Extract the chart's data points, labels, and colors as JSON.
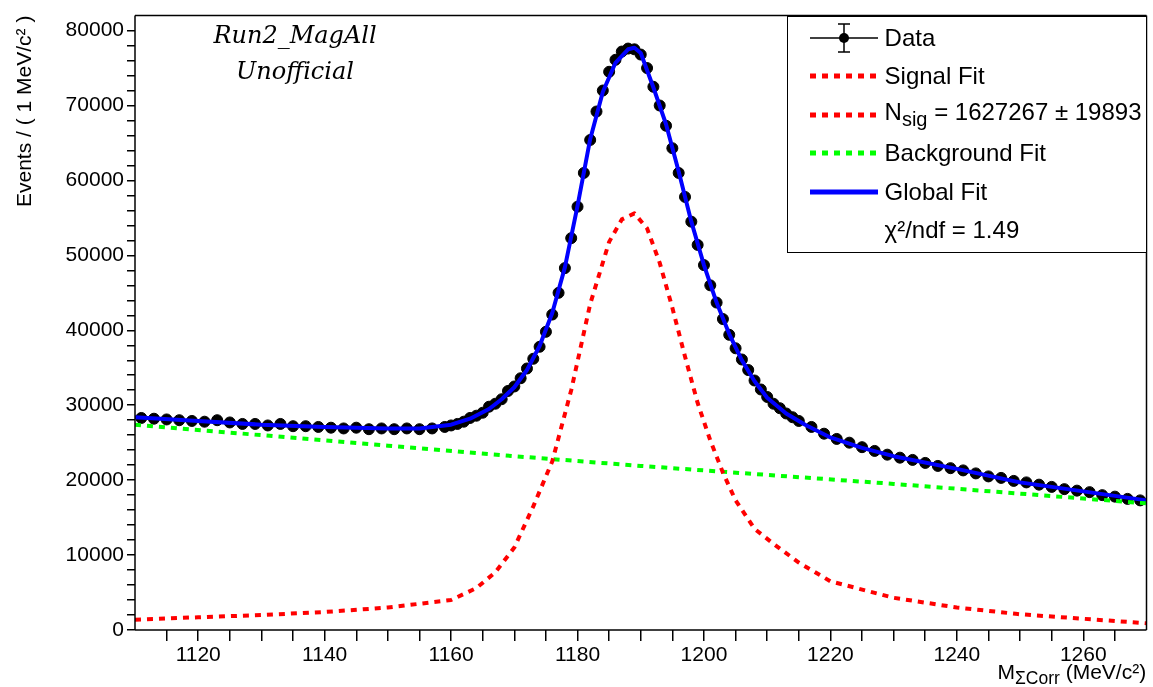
{
  "chart_data": {
    "type": "line",
    "xlabel": "M$_{ΣCorr}$ (MeV/c²)",
    "ylabel": "Events / ( 1 MeV/c² )",
    "xlim": [
      1110,
      1270
    ],
    "xticks": [
      {
        "value": 1115,
        "label": null
      },
      1120,
      {
        "value": 1125,
        "label": null
      },
      {
        "value": 1130,
        "label": null
      },
      {
        "value": 1135,
        "label": null
      },
      1140,
      {
        "value": 1145,
        "label": null
      },
      {
        "value": 1150,
        "label": null
      },
      {
        "value": 1155,
        "label": null
      },
      1160,
      {
        "value": 1165,
        "label": null
      },
      {
        "value": 1170,
        "label": null
      },
      {
        "value": 1175,
        "label": null
      },
      1180,
      {
        "value": 1185,
        "label": null
      },
      {
        "value": 1190,
        "label": null
      },
      {
        "value": 1195,
        "label": null
      },
      1200,
      {
        "value": 1205,
        "label": null
      },
      {
        "value": 1210,
        "label": null
      },
      {
        "value": 1215,
        "label": null
      },
      1220,
      {
        "value": 1225,
        "label": null
      },
      {
        "value": 1230,
        "label": null
      },
      {
        "value": 1235,
        "label": null
      },
      1240,
      {
        "value": 1245,
        "label": null
      },
      {
        "value": 1250,
        "label": null
      },
      {
        "value": 1255,
        "label": null
      },
      1260,
      {
        "value": 1265,
        "label": null
      }
    ],
    "ylim": [
      0,
      82000
    ],
    "yticks": [
      0,
      {
        "value": 2000,
        "label": null
      },
      {
        "value": 4000,
        "label": null
      },
      {
        "value": 6000,
        "label": null
      },
      {
        "value": 8000,
        "label": null
      },
      10000,
      {
        "value": 12000,
        "label": null
      },
      {
        "value": 14000,
        "label": null
      },
      {
        "value": 16000,
        "label": null
      },
      {
        "value": 18000,
        "label": null
      },
      20000,
      {
        "value": 22000,
        "label": null
      },
      {
        "value": 24000,
        "label": null
      },
      {
        "value": 26000,
        "label": null
      },
      {
        "value": 28000,
        "label": null
      },
      30000,
      {
        "value": 32000,
        "label": null
      },
      {
        "value": 34000,
        "label": null
      },
      {
        "value": 36000,
        "label": null
      },
      {
        "value": 38000,
        "label": null
      },
      40000,
      {
        "value": 42000,
        "label": null
      },
      {
        "value": 44000,
        "label": null
      },
      {
        "value": 46000,
        "label": null
      },
      {
        "value": 48000,
        "label": null
      },
      50000,
      {
        "value": 52000,
        "label": null
      },
      {
        "value": 54000,
        "label": null
      },
      {
        "value": 56000,
        "label": null
      },
      {
        "value": 58000,
        "label": null
      },
      60000,
      {
        "value": 62000,
        "label": null
      },
      {
        "value": 64000,
        "label": null
      },
      {
        "value": 66000,
        "label": null
      },
      {
        "value": 68000,
        "label": null
      },
      70000,
      {
        "value": 72000,
        "label": null
      },
      {
        "value": 74000,
        "label": null
      },
      {
        "value": 76000,
        "label": null
      },
      {
        "value": 78000,
        "label": null
      },
      80000
    ],
    "grid": false,
    "legend": "top right",
    "annotations": [
      "N$_{sig}$ = 1627267 ± 19893",
      "χ²/ndf = 1.49",
      "Run2_MagAll",
      "Unofficial"
    ],
    "series": [
      {
        "name": "Data",
        "type": "scatter",
        "color": "#000000",
        "marker": "circle",
        "x": [
          1111,
          1113,
          1115,
          1117,
          1119,
          1121,
          1123,
          1125,
          1127,
          1129,
          1131,
          1133,
          1135,
          1137,
          1139,
          1141,
          1143,
          1145,
          1147,
          1149,
          1151,
          1153,
          1155,
          1157,
          1159,
          1160,
          1161,
          1162,
          1163,
          1164,
          1165,
          1166,
          1167,
          1168,
          1169,
          1170,
          1171,
          1172,
          1173,
          1174,
          1175,
          1176,
          1177,
          1178,
          1179,
          1180,
          1181,
          1182,
          1183,
          1184,
          1185,
          1186,
          1187,
          1188,
          1189,
          1190,
          1191,
          1192,
          1193,
          1194,
          1195,
          1196,
          1197,
          1198,
          1199,
          1200,
          1201,
          1202,
          1203,
          1204,
          1205,
          1206,
          1207,
          1208,
          1209,
          1210,
          1211,
          1212,
          1213,
          1214,
          1215,
          1217,
          1219,
          1221,
          1223,
          1225,
          1227,
          1229,
          1231,
          1233,
          1235,
          1237,
          1239,
          1241,
          1243,
          1245,
          1247,
          1249,
          1251,
          1253,
          1255,
          1257,
          1259,
          1261,
          1263,
          1265,
          1267,
          1269
        ],
        "values": [
          28300,
          28200,
          28100,
          28000,
          27900,
          27800,
          28000,
          27700,
          27500,
          27500,
          27300,
          27500,
          27200,
          27200,
          27100,
          27000,
          26900,
          27000,
          26800,
          26900,
          26800,
          26900,
          26800,
          26900,
          27100,
          27300,
          27500,
          27800,
          28300,
          28600,
          29000,
          29800,
          30200,
          30800,
          31900,
          32500,
          33600,
          34900,
          36200,
          37800,
          39800,
          42100,
          45000,
          48300,
          52300,
          56500,
          61000,
          65400,
          69200,
          72000,
          74500,
          76100,
          77200,
          77600,
          77500,
          76800,
          75000,
          72500,
          70000,
          67300,
          64300,
          61000,
          57800,
          54500,
          51400,
          48700,
          46000,
          43700,
          41500,
          39400,
          37600,
          36100,
          34700,
          33300,
          32100,
          31100,
          30200,
          29600,
          28900,
          28400,
          27900,
          27100,
          26200,
          25500,
          25000,
          24400,
          23900,
          23400,
          23000,
          22700,
          22300,
          21900,
          21600,
          21300,
          20900,
          20500,
          20300,
          19900,
          19700,
          19400,
          19100,
          18800,
          18600,
          18400,
          18000,
          17800,
          17500,
          17300
        ]
      },
      {
        "name": "Signal Fit",
        "type": "line",
        "color": "#ff0000",
        "line_style": "dotted",
        "x": [
          1110,
          1120,
          1130,
          1140,
          1150,
          1155,
          1160,
          1164,
          1167,
          1170,
          1173,
          1176,
          1179,
          1182,
          1185,
          1187,
          1189,
          1191,
          1193,
          1195,
          1197,
          1199,
          1201,
          1203,
          1205,
          1208,
          1211,
          1215,
          1220,
          1230,
          1240,
          1250,
          1260,
          1270
        ],
        "values": [
          1380,
          1700,
          2000,
          2400,
          3000,
          3500,
          4000,
          5600,
          7700,
          11000,
          16500,
          22500,
          32000,
          43500,
          51800,
          54800,
          55600,
          53600,
          49000,
          43000,
          36500,
          30300,
          25300,
          21000,
          17300,
          13500,
          11500,
          9000,
          6500,
          4300,
          3000,
          2100,
          1500,
          900
        ]
      },
      {
        "name": "Background Fit",
        "type": "line",
        "color": "#00ff00",
        "line_style": "dotted",
        "x": [
          1110,
          1130,
          1150,
          1170,
          1190,
          1210,
          1230,
          1250,
          1270
        ],
        "values": [
          27400,
          26000,
          24600,
          23200,
          21900,
          20700,
          19500,
          18200,
          16900
        ]
      },
      {
        "name": "Global Fit",
        "type": "line",
        "color": "#0000ff",
        "line_style": "solid",
        "x": [
          1110,
          1120,
          1130,
          1140,
          1150,
          1155,
          1160,
          1163,
          1166,
          1168,
          1170,
          1172,
          1174,
          1176,
          1178,
          1180,
          1182,
          1184,
          1186,
          1188,
          1189,
          1190,
          1192,
          1194,
          1196,
          1198,
          1200,
          1202,
          1204,
          1206,
          1208,
          1210,
          1213,
          1216,
          1220,
          1225,
          1230,
          1240,
          1250,
          1260,
          1270
        ],
        "values": [
          28400,
          27900,
          27400,
          27100,
          26900,
          26900,
          27400,
          28200,
          29500,
          30800,
          32400,
          34700,
          37900,
          42300,
          48400,
          56600,
          65500,
          71800,
          75700,
          77500,
          77700,
          77000,
          72400,
          67500,
          61200,
          54500,
          48700,
          43700,
          39500,
          36000,
          33200,
          31000,
          28900,
          27400,
          25700,
          24300,
          23200,
          21500,
          19700,
          18500,
          17300
        ]
      }
    ]
  }
}
